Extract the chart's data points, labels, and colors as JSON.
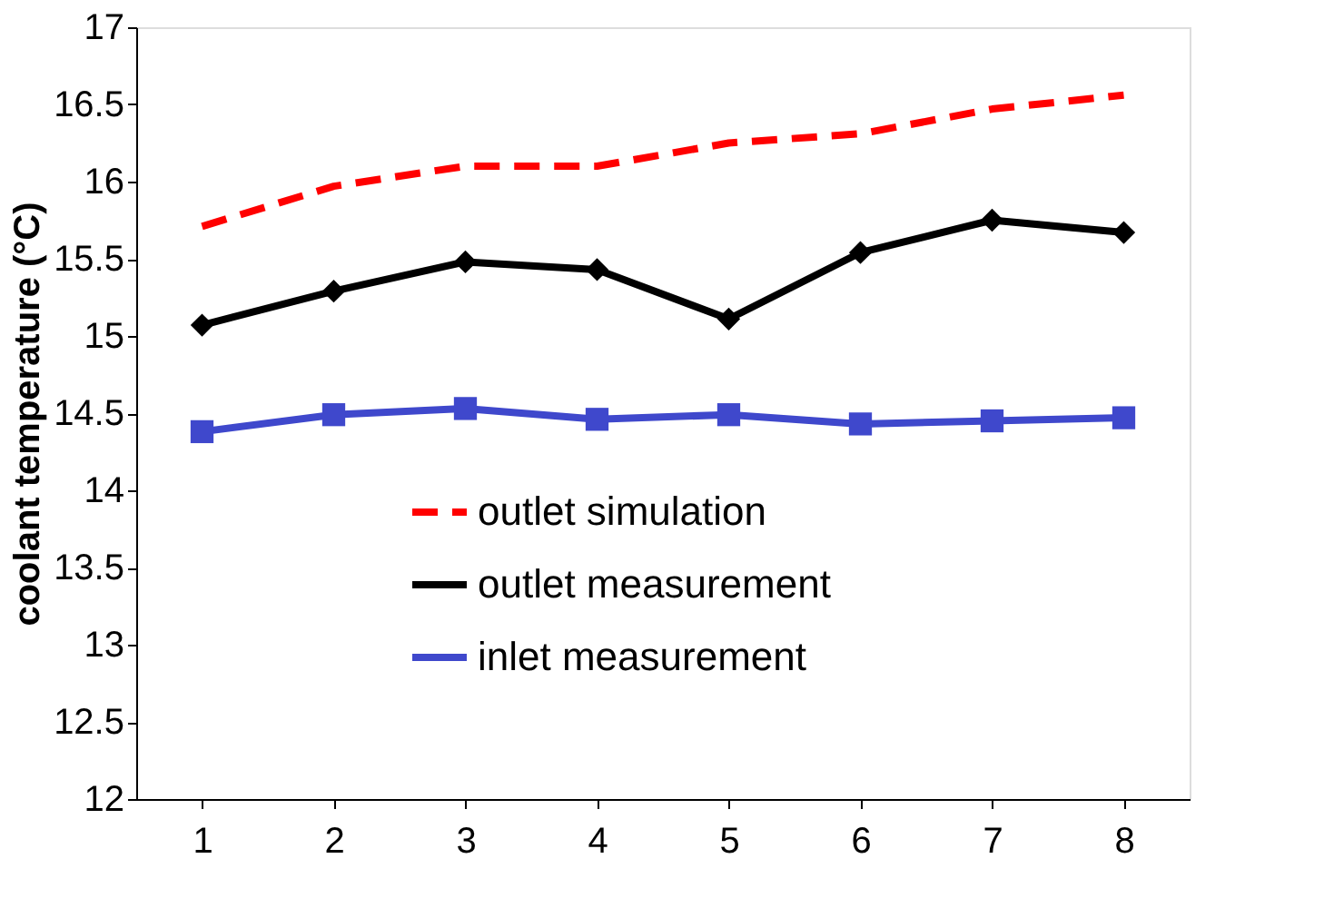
{
  "chart_data": {
    "type": "line",
    "ylabel": "coolant temperature (°C)",
    "categories": [
      "1",
      "2",
      "3",
      "4",
      "5",
      "6",
      "7",
      "8"
    ],
    "series": [
      {
        "name": "outlet simulation",
        "color": "#ff0000",
        "line_style": "dashed",
        "marker": "none",
        "values": [
          15.71,
          15.97,
          16.1,
          16.1,
          16.25,
          16.31,
          16.47,
          16.56
        ]
      },
      {
        "name": "outlet measurement",
        "color": "#000000",
        "line_style": "solid",
        "marker": "diamond",
        "values": [
          15.07,
          15.29,
          15.48,
          15.43,
          15.11,
          15.54,
          15.75,
          15.67
        ]
      },
      {
        "name": "inlet measurement",
        "color": "#3f48cc",
        "line_style": "solid",
        "marker": "square",
        "values": [
          14.38,
          14.49,
          14.53,
          14.46,
          14.49,
          14.43,
          14.45,
          14.47
        ]
      }
    ],
    "ylim": [
      12,
      17
    ],
    "yticks": [
      12,
      12.5,
      13,
      13.5,
      14,
      14.5,
      15,
      15.5,
      16,
      16.5,
      17
    ],
    "grid": false,
    "legend": "bottom"
  }
}
